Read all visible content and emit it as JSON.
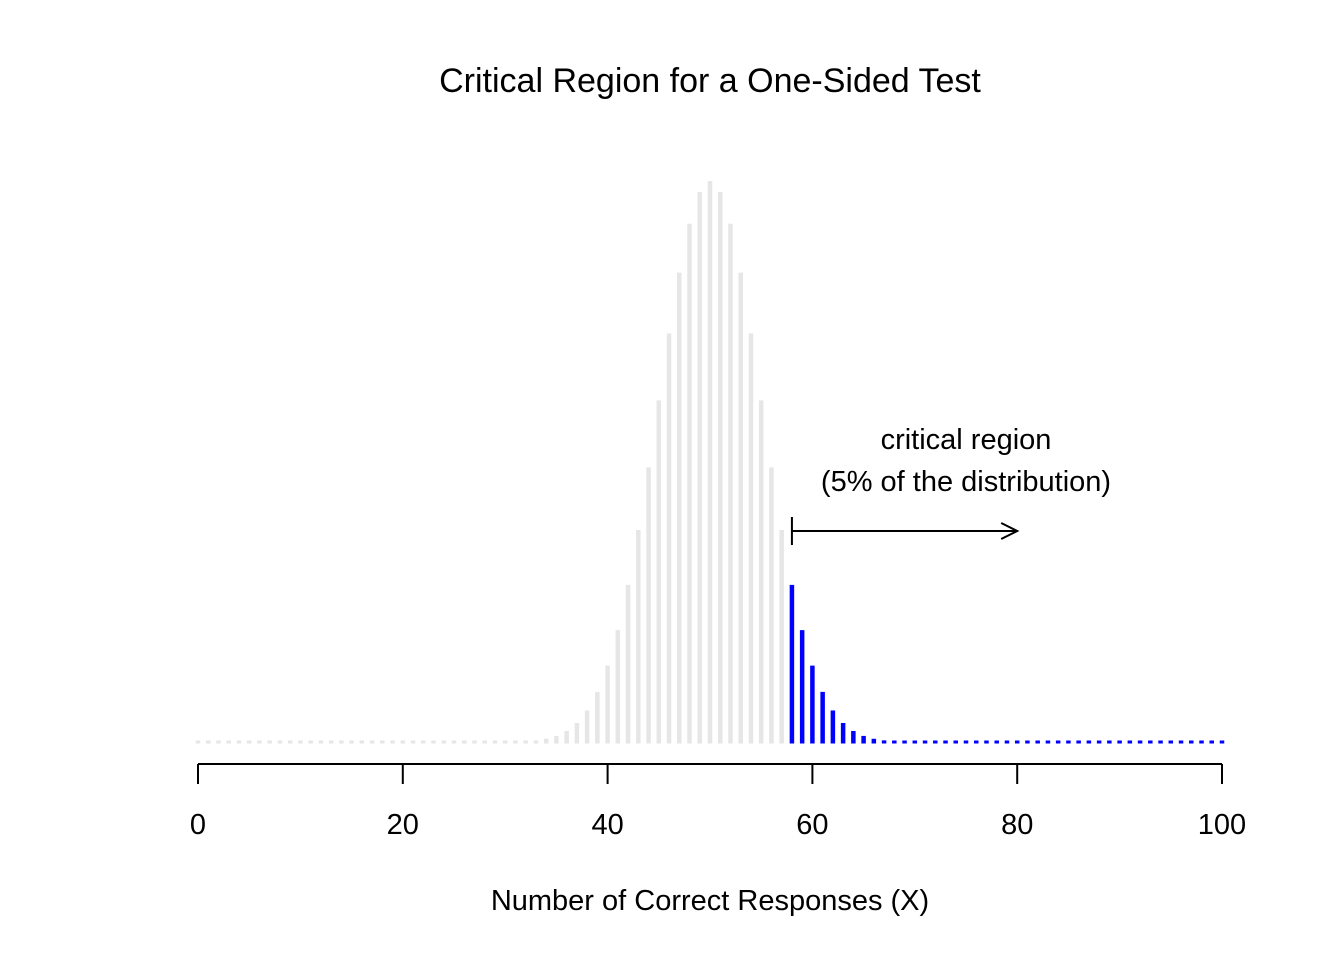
{
  "chart_data": {
    "type": "bar",
    "title": "Critical Region for a One-Sided Test",
    "xlabel": "Number of Correct Responses (X)",
    "ylabel": "",
    "xlim": [
      0,
      100
    ],
    "ylim": [
      0,
      0.08
    ],
    "distribution": {
      "name": "binomial",
      "n": 100,
      "p": 0.5
    },
    "critical_threshold": 58,
    "x_ticks": [
      {
        "value": 0,
        "label": "0"
      },
      {
        "value": 20,
        "label": "20"
      },
      {
        "value": 40,
        "label": "40"
      },
      {
        "value": 60,
        "label": "60"
      },
      {
        "value": 80,
        "label": "80"
      },
      {
        "value": 100,
        "label": "100"
      }
    ],
    "annotation": {
      "line1": "critical region",
      "line2": "(5% of the distribution)",
      "arrow_from": 58,
      "arrow_to": 80
    },
    "axes": {
      "y_axis_shown": false,
      "grid": false
    },
    "colors": {
      "non_critical": "#e6e6e6",
      "critical": "#0000ff",
      "axis": "#000000"
    },
    "x": [],
    "values": []
  }
}
